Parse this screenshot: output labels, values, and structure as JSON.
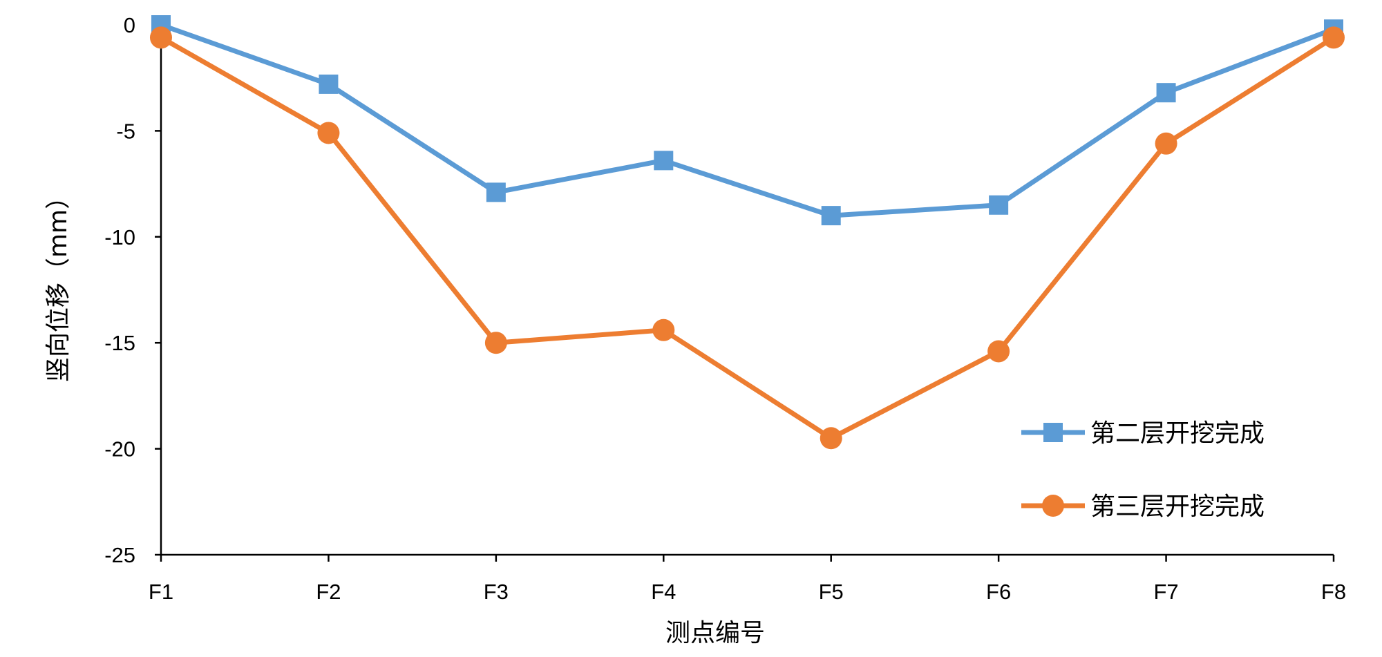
{
  "chart_data": {
    "type": "line",
    "categories": [
      "F1",
      "F2",
      "F3",
      "F4",
      "F5",
      "F6",
      "F7",
      "F8"
    ],
    "xlabel": "测点编号",
    "ylabel": "竖向位移（mm）",
    "ylim": [
      -25,
      0
    ],
    "yticks": [
      0,
      -5,
      -10,
      -15,
      -20,
      -25
    ],
    "ytick_labels": [
      "0",
      "-5",
      "-10",
      "-15",
      "-20",
      "-25"
    ],
    "grid": false,
    "legend_position": "lower-right",
    "series": [
      {
        "name": "第二层开挖完成",
        "marker": "square",
        "color": "#5B9BD5",
        "values": [
          0,
          -2.8,
          -7.9,
          -6.4,
          -9.0,
          -8.5,
          -3.2,
          -0.2
        ]
      },
      {
        "name": "第三层开挖完成",
        "marker": "circle",
        "color": "#ED7D31",
        "values": [
          -0.6,
          -5.1,
          -15.0,
          -14.4,
          -19.5,
          -15.4,
          -5.6,
          -0.6
        ]
      }
    ]
  }
}
